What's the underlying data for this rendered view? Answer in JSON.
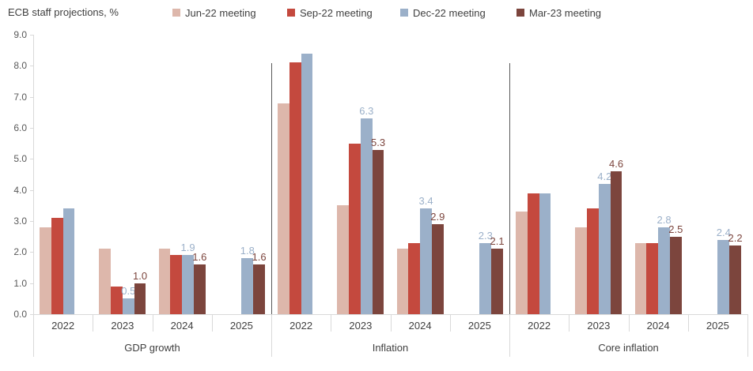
{
  "title": "ECB staff projections, %",
  "legend": [
    {
      "label": "Jun-22 meeting",
      "color": "#ddb7ab"
    },
    {
      "label": "Sep-22 meeting",
      "color": "#c4493e"
    },
    {
      "label": "Dec-22 meeting",
      "color": "#9bb0c9"
    },
    {
      "label": "Mar-23 meeting",
      "color": "#7c453d"
    }
  ],
  "chart_data": {
    "type": "bar",
    "title": "ECB staff projections, %",
    "ylabel": "%",
    "ylim": [
      0,
      9
    ],
    "ytick_labels": [
      "0.0",
      "1.0",
      "2.0",
      "3.0",
      "4.0",
      "5.0",
      "6.0",
      "7.0",
      "8.0",
      "9.0"
    ],
    "grid": false,
    "legend_position": "top",
    "series": [
      {
        "name": "Jun-22 meeting",
        "color": "#ddb7ab"
      },
      {
        "name": "Sep-22 meeting",
        "color": "#c4493e"
      },
      {
        "name": "Dec-22 meeting",
        "color": "#9bb0c9"
      },
      {
        "name": "Mar-23 meeting",
        "color": "#7c453d"
      }
    ],
    "groups": [
      {
        "label": "GDP growth",
        "years": [
          {
            "year": "2022",
            "values": [
              2.8,
              3.1,
              3.4,
              null
            ],
            "labels": [
              null,
              null,
              null,
              null
            ]
          },
          {
            "year": "2023",
            "values": [
              2.1,
              0.9,
              0.5,
              1.0
            ],
            "labels": [
              null,
              null,
              "0.5",
              "1.0"
            ]
          },
          {
            "year": "2024",
            "values": [
              2.1,
              1.9,
              1.9,
              1.6
            ],
            "labels": [
              null,
              null,
              "1.9",
              "1.6"
            ]
          },
          {
            "year": "2025",
            "values": [
              null,
              null,
              1.8,
              1.6
            ],
            "labels": [
              null,
              null,
              "1.8",
              "1.6"
            ]
          }
        ]
      },
      {
        "label": "Inflation",
        "years": [
          {
            "year": "2022",
            "values": [
              6.8,
              8.1,
              8.4,
              null
            ],
            "labels": [
              null,
              null,
              null,
              null
            ]
          },
          {
            "year": "2023",
            "values": [
              3.5,
              5.5,
              6.3,
              5.3
            ],
            "labels": [
              null,
              null,
              "6.3",
              "5.3"
            ]
          },
          {
            "year": "2024",
            "values": [
              2.1,
              2.3,
              3.4,
              2.9
            ],
            "labels": [
              null,
              null,
              "3.4",
              "2.9"
            ]
          },
          {
            "year": "2025",
            "values": [
              null,
              null,
              2.3,
              2.1
            ],
            "labels": [
              null,
              null,
              "2.3",
              "2.1"
            ]
          }
        ]
      },
      {
        "label": "Core inflation",
        "years": [
          {
            "year": "2022",
            "values": [
              3.3,
              3.9,
              3.9,
              null
            ],
            "labels": [
              null,
              null,
              null,
              null
            ]
          },
          {
            "year": "2023",
            "values": [
              2.8,
              3.4,
              4.2,
              4.6
            ],
            "labels": [
              null,
              null,
              "4.2",
              "4.6"
            ]
          },
          {
            "year": "2024",
            "values": [
              2.3,
              2.3,
              2.8,
              2.5
            ],
            "labels": [
              null,
              null,
              "2.8",
              "2.5"
            ]
          },
          {
            "year": "2025",
            "values": [
              null,
              null,
              2.4,
              2.2
            ],
            "labels": [
              null,
              null,
              "2.4",
              "2.2"
            ]
          }
        ]
      }
    ]
  }
}
